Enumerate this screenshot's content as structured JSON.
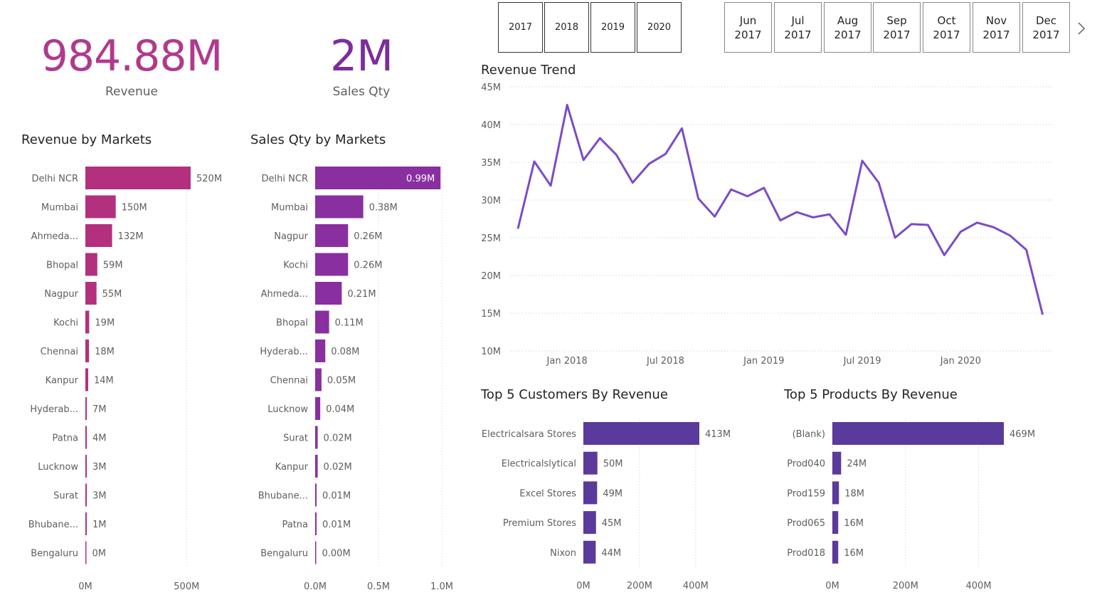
{
  "colors": {
    "revenue_accent": "#b03a8c",
    "qty_accent": "#7b2d9c",
    "line": "#7b4cc6",
    "bar_market_revenue": "#b3307f",
    "bar_market_qty": "#8a2fa0",
    "bar_top5": "#5a3a9a"
  },
  "kpis": {
    "revenue": {
      "value": "984.88M",
      "label": "Revenue"
    },
    "sales_qty": {
      "value": "2M",
      "label": "Sales Qty"
    }
  },
  "year_slicer": [
    "2017",
    "2018",
    "2019",
    "2020"
  ],
  "month_slicer": [
    {
      "month": "Jun",
      "year": "2017"
    },
    {
      "month": "Jul",
      "year": "2017"
    },
    {
      "month": "Aug",
      "year": "2017"
    },
    {
      "month": "Sep",
      "year": "2017"
    },
    {
      "month": "Oct",
      "year": "2017"
    },
    {
      "month": "Nov",
      "year": "2017"
    },
    {
      "month": "Dec",
      "year": "2017"
    }
  ],
  "titles": {
    "revenue_markets": "Revenue by Markets",
    "qty_markets": "Sales Qty by Markets",
    "trend": "Revenue Trend",
    "top_customers": "Top 5 Customers By Revenue",
    "top_products": "Top 5 Products By Revenue"
  },
  "chart_data": [
    {
      "id": "revenue_markets",
      "type": "bar",
      "orientation": "horizontal",
      "title": "Revenue by Markets",
      "categories": [
        "Delhi NCR",
        "Mumbai",
        "Ahmeda...",
        "Bhopal",
        "Nagpur",
        "Kochi",
        "Chennai",
        "Kanpur",
        "Hyderab...",
        "Patna",
        "Lucknow",
        "Surat",
        "Bhubane...",
        "Bengaluru"
      ],
      "values": [
        520,
        150,
        132,
        59,
        55,
        19,
        18,
        14,
        7,
        4,
        3,
        3,
        1,
        0
      ],
      "labels": [
        "520M",
        "150M",
        "132M",
        "59M",
        "55M",
        "19M",
        "18M",
        "14M",
        "7M",
        "4M",
        "3M",
        "3M",
        "1M",
        "0M"
      ],
      "xlim": [
        0,
        520
      ],
      "xticks": [
        0,
        500
      ],
      "xtick_labels": [
        "0M",
        "500M"
      ],
      "grid": true
    },
    {
      "id": "qty_markets",
      "type": "bar",
      "orientation": "horizontal",
      "title": "Sales Qty by Markets",
      "categories": [
        "Delhi NCR",
        "Mumbai",
        "Nagpur",
        "Kochi",
        "Ahmeda...",
        "Bhopal",
        "Hyderab...",
        "Chennai",
        "Lucknow",
        "Surat",
        "Kanpur",
        "Bhubane...",
        "Patna",
        "Bengaluru"
      ],
      "values": [
        0.99,
        0.38,
        0.26,
        0.26,
        0.21,
        0.11,
        0.08,
        0.05,
        0.04,
        0.02,
        0.02,
        0.01,
        0.01,
        0.0
      ],
      "labels": [
        "0.99M",
        "0.38M",
        "0.26M",
        "0.26M",
        "0.21M",
        "0.11M",
        "0.08M",
        "0.05M",
        "0.04M",
        "0.02M",
        "0.02M",
        "0.01M",
        "0.01M",
        "0.00M"
      ],
      "xlim": [
        0,
        1.0
      ],
      "xticks": [
        0,
        0.5,
        1.0
      ],
      "xtick_labels": [
        "0.0M",
        "0.5M",
        "1.0M"
      ],
      "grid": true
    },
    {
      "id": "trend",
      "type": "line",
      "title": "Revenue Trend",
      "x_start": "2017-10",
      "x": [
        "2017-10",
        "2017-11",
        "2017-12",
        "2018-01",
        "2018-02",
        "2018-03",
        "2018-04",
        "2018-05",
        "2018-06",
        "2018-07",
        "2018-08",
        "2018-09",
        "2018-10",
        "2018-11",
        "2018-12",
        "2019-01",
        "2019-02",
        "2019-03",
        "2019-04",
        "2019-05",
        "2019-06",
        "2019-07",
        "2019-08",
        "2019-09",
        "2019-10",
        "2019-11",
        "2019-12",
        "2020-01",
        "2020-02",
        "2020-03",
        "2020-04",
        "2020-05",
        "2020-06"
      ],
      "values": [
        26.2,
        35.1,
        31.9,
        42.6,
        35.3,
        38.2,
        36.0,
        32.3,
        34.8,
        36.1,
        39.5,
        30.2,
        27.8,
        31.4,
        30.5,
        31.6,
        27.3,
        28.4,
        27.7,
        28.1,
        25.4,
        35.2,
        32.3,
        25.0,
        26.8,
        26.7,
        22.7,
        25.8,
        27.0,
        26.4,
        25.3,
        23.4,
        14.8
      ],
      "ylim": [
        10,
        45
      ],
      "yticks": [
        10,
        15,
        20,
        25,
        30,
        35,
        40,
        45
      ],
      "ytick_labels": [
        "10M",
        "15M",
        "20M",
        "25M",
        "30M",
        "35M",
        "40M",
        "45M"
      ],
      "xtick_labels": [
        "Jan 2018",
        "Jul 2018",
        "Jan 2019",
        "Jul 2019",
        "Jan 2020"
      ],
      "xtick_dates": [
        "2018-01",
        "2018-07",
        "2019-01",
        "2019-07",
        "2020-01"
      ],
      "grid": true
    },
    {
      "id": "top_customers",
      "type": "bar",
      "orientation": "horizontal",
      "title": "Top 5 Customers By Revenue",
      "categories": [
        "Electricalsara Stores",
        "Electricalslytical",
        "Excel Stores",
        "Premium Stores",
        "Nixon"
      ],
      "values": [
        413,
        50,
        49,
        45,
        44
      ],
      "labels": [
        "413M",
        "50M",
        "49M",
        "45M",
        "44M"
      ],
      "xlim": [
        0,
        413
      ],
      "xticks": [
        0,
        200,
        400
      ],
      "xtick_labels": [
        "0M",
        "200M",
        "400M"
      ],
      "grid": true
    },
    {
      "id": "top_products",
      "type": "bar",
      "orientation": "horizontal",
      "title": "Top 5 Products By Revenue",
      "categories": [
        "(Blank)",
        "Prod040",
        "Prod159",
        "Prod065",
        "Prod018"
      ],
      "values": [
        469,
        24,
        18,
        16,
        16
      ],
      "labels": [
        "469M",
        "24M",
        "18M",
        "16M",
        "16M"
      ],
      "xlim": [
        0,
        469
      ],
      "xticks": [
        0,
        200,
        400
      ],
      "xtick_labels": [
        "0M",
        "200M",
        "400M"
      ],
      "grid": true
    }
  ]
}
